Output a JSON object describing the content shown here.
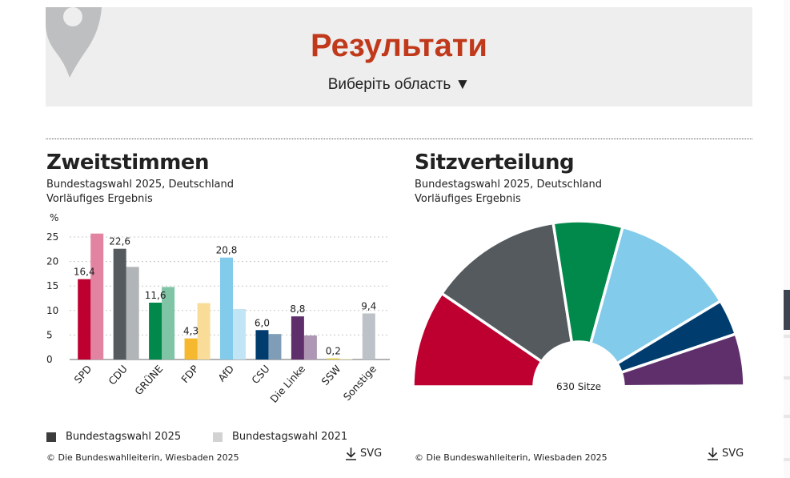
{
  "header": {
    "title": "Результати",
    "region_select": "Виберіть область ▼"
  },
  "colors": {
    "title_red": "#c0391b",
    "panel_bg": "#eeeeee"
  },
  "left_panel": {
    "title": "Zweitstimmen",
    "subtitle_1": "Bundestagswahl 2025, Deutschland",
    "subtitle_2": "Vorläufiges Ergebnis",
    "legend": [
      {
        "label": "Bundestagswahl 2025",
        "color": "#3c3c3c"
      },
      {
        "label": "Bundestagswahl 2021",
        "color": "#d2d2d2"
      }
    ],
    "credit": "© Die Bundeswahlleiterin, Wiesbaden 2025",
    "download_label": "SVG"
  },
  "right_panel": {
    "title": "Sitzverteilung",
    "subtitle_1": "Bundestagswahl 2025, Deutschland",
    "subtitle_2": "Vorläufiges Ergebnis",
    "credit": "© Die Bundeswahlleiterin, Wiesbaden 2025",
    "download_label": "SVG"
  },
  "chart_data": [
    {
      "type": "bar",
      "ylabel": "%",
      "ylim": [
        0,
        25
      ],
      "yticks": [
        0,
        5,
        10,
        15,
        20,
        25
      ],
      "grid": true,
      "categories": [
        "SPD",
        "CDU",
        "GRÜNE",
        "FDP",
        "AfD",
        "CSU",
        "Die Linke",
        "SSW",
        "Sonstige"
      ],
      "series": [
        {
          "name": "Bundestagswahl 2025",
          "values": [
            16.4,
            22.6,
            11.6,
            4.3,
            20.8,
            6.0,
            8.8,
            0.2,
            9.4
          ],
          "labels": [
            "16,4",
            "22,6",
            "11,6",
            "4,3",
            "20,8",
            "6,0",
            "8,8",
            "0,2",
            "9,4"
          ],
          "colors": [
            "#be0030",
            "#545a5e",
            "#00894b",
            "#f5b82e",
            "#82cbea",
            "#003c6e",
            "#5e2f6b",
            "#ead34e",
            "#bcc2c8"
          ]
        },
        {
          "name": "Bundestagswahl 2021",
          "values": [
            25.7,
            18.9,
            14.8,
            11.5,
            10.3,
            5.2,
            4.9,
            0.1,
            null
          ],
          "colors": [
            "#e283a1",
            "#b2b5b7",
            "#7fc4a5",
            "#f9dc97",
            "#c1e5f4",
            "#7f9db6",
            "#ae97b5",
            "#f4e9a6",
            "#dde0e3"
          ]
        }
      ]
    },
    {
      "type": "pie",
      "variant": "semicircle",
      "center_label": "630 Sitze",
      "slices": [
        {
          "party": "SPD",
          "seats": 120,
          "color": "#be0030"
        },
        {
          "party": "CDU",
          "seats": 164,
          "color": "#545a5e"
        },
        {
          "party": "GRÜNE",
          "seats": 85,
          "color": "#00894b"
        },
        {
          "party": "AfD",
          "seats": 152,
          "color": "#82cbea"
        },
        {
          "party": "CSU",
          "seats": 44,
          "color": "#003c6e"
        },
        {
          "party": "Die Linke",
          "seats": 64,
          "color": "#5e2f6b"
        },
        {
          "party": "SSW",
          "seats": 1,
          "color": "#ead34e"
        }
      ]
    }
  ]
}
